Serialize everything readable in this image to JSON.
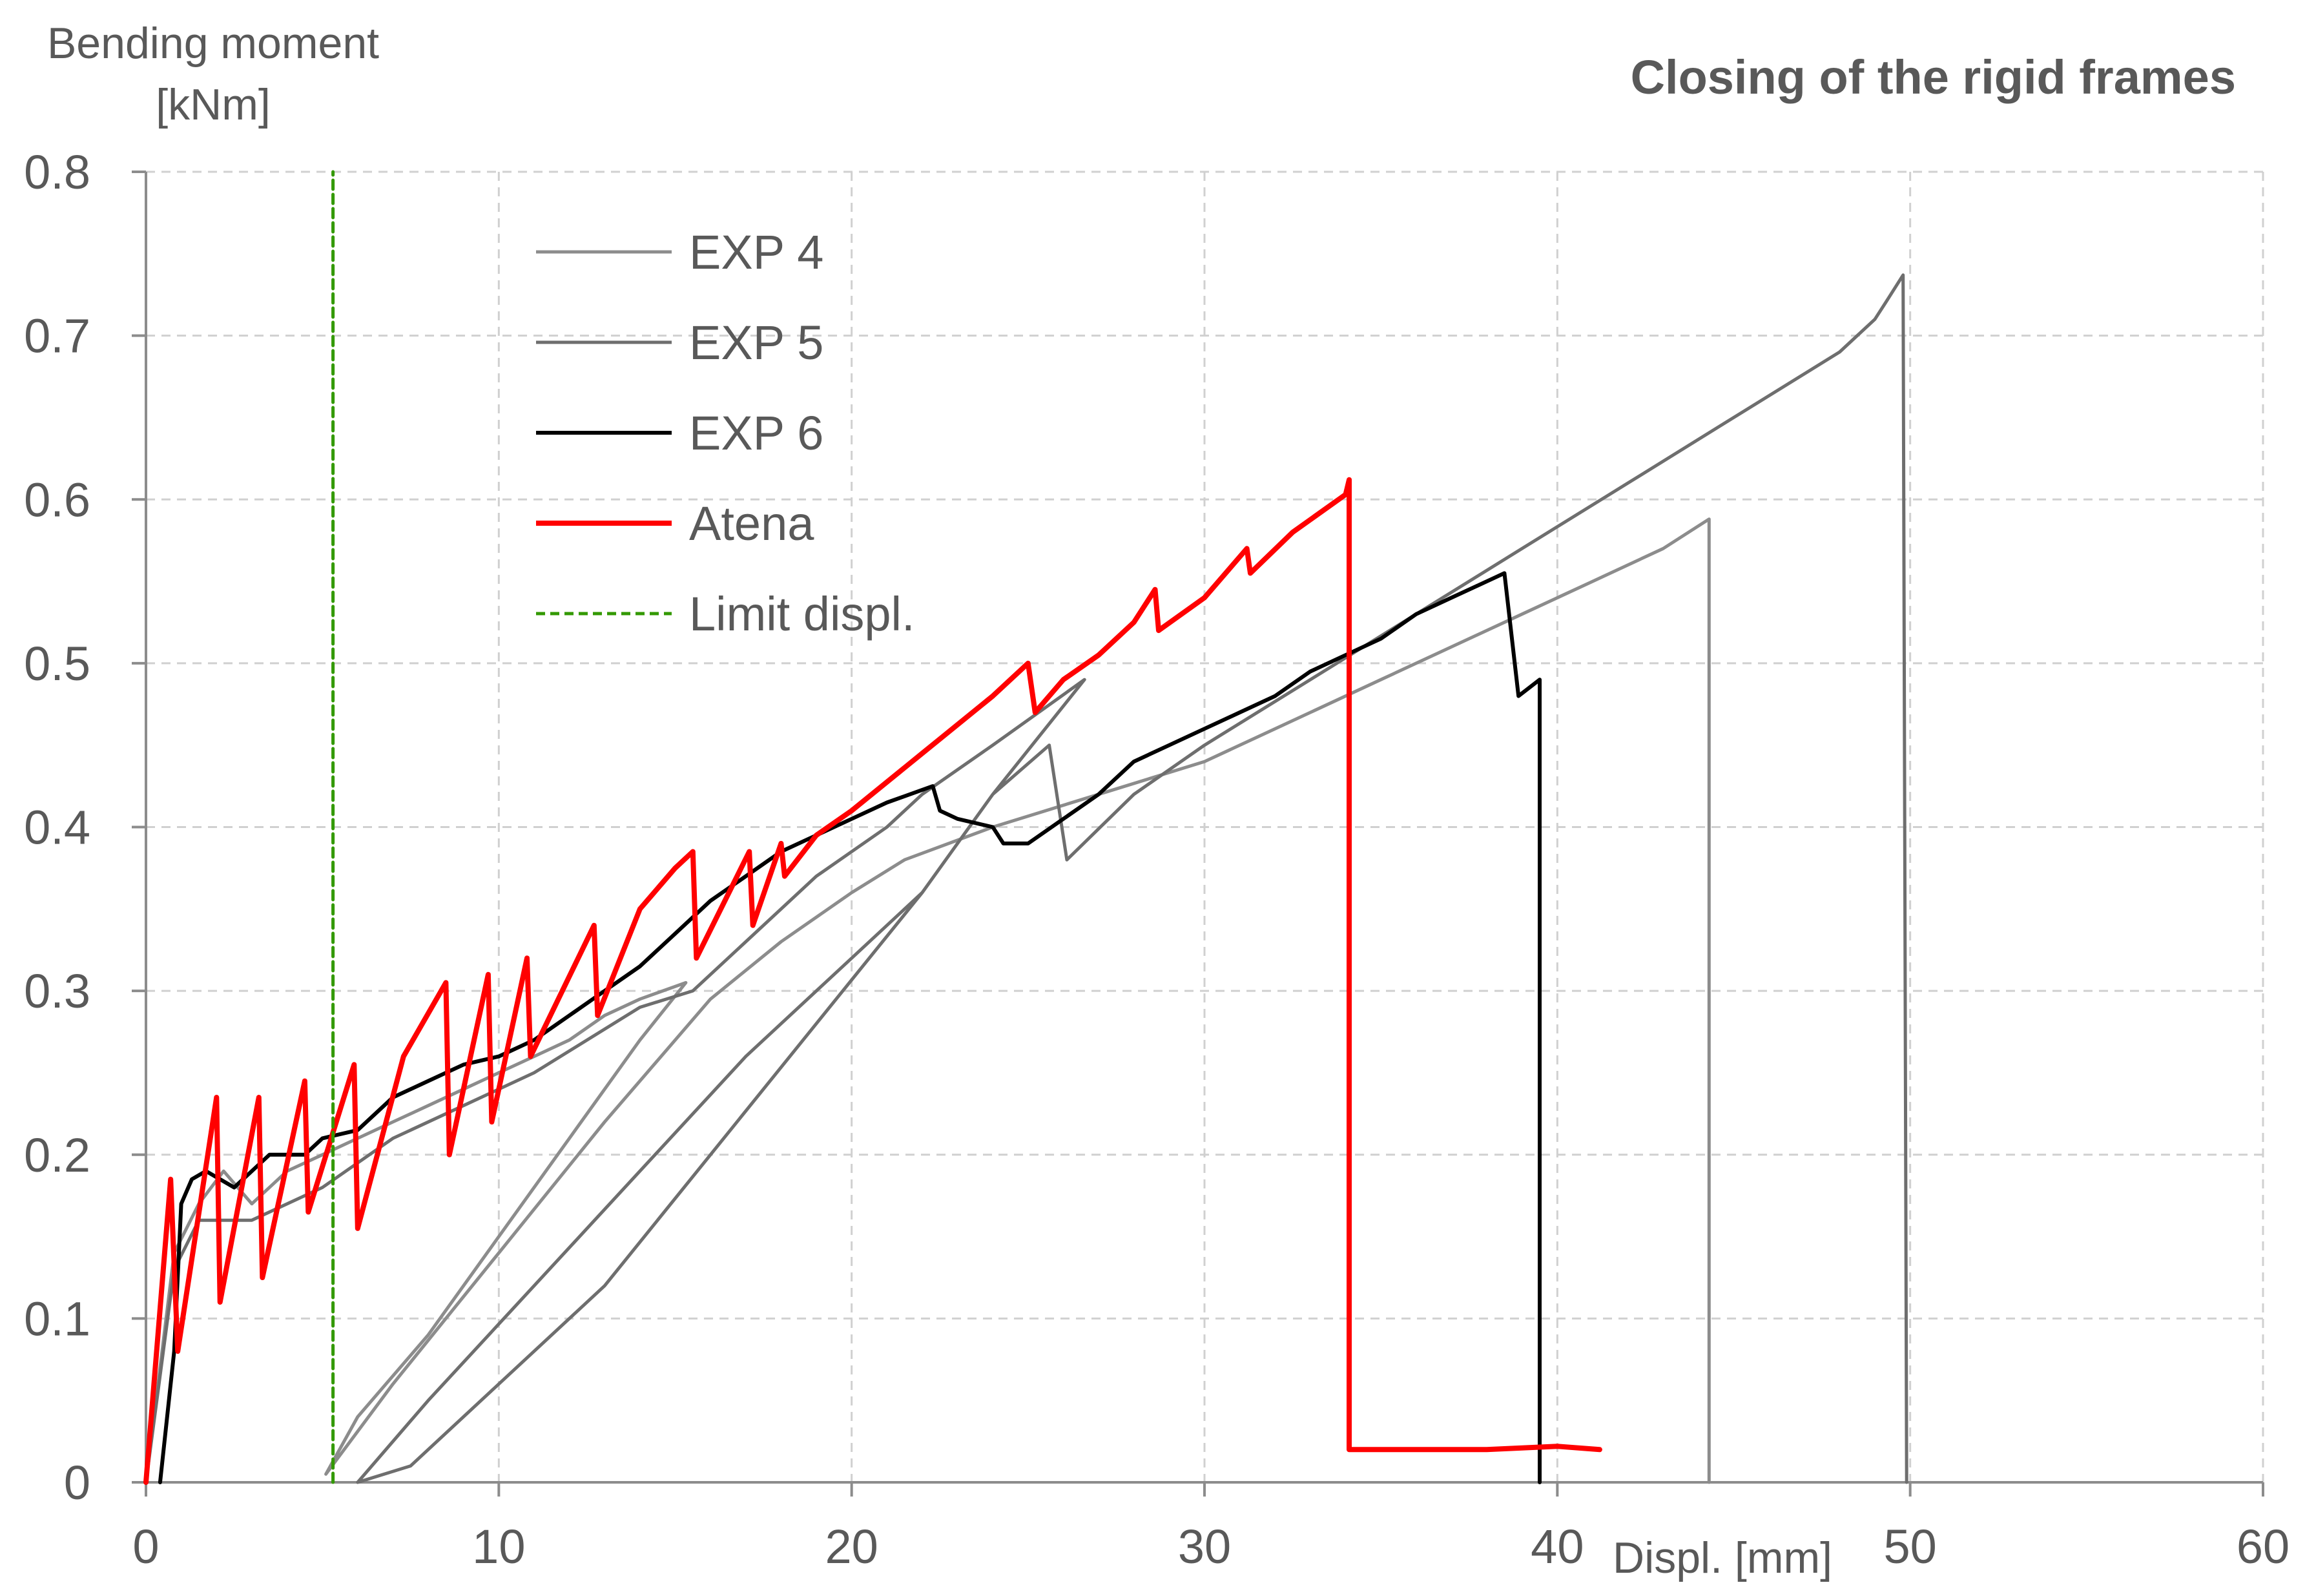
{
  "chart_data": {
    "type": "line",
    "title": "Closing of the rigid frames",
    "ylabel": "Bending moment [kNm]",
    "ylabel_lines": [
      "Bending moment",
      "[kNm]"
    ],
    "xlabel": "Displ. [mm]",
    "xlim": [
      0,
      60
    ],
    "ylim": [
      0,
      0.8
    ],
    "x_ticks": [
      "0",
      "10",
      "20",
      "30",
      "40",
      "50",
      "60"
    ],
    "y_ticks": [
      "0",
      "0.1",
      "0.2",
      "0.3",
      "0.4",
      "0.5",
      "0.6",
      "0.7",
      "0.8"
    ],
    "grid": true,
    "legend_position": "top-left",
    "series": [
      {
        "name": "EXP 4",
        "color": "#8c8c8c",
        "width": 5,
        "points": [
          [
            0,
            0
          ],
          [
            0.8,
            0.14
          ],
          [
            1.5,
            0.17
          ],
          [
            2.2,
            0.19
          ],
          [
            3,
            0.17
          ],
          [
            4,
            0.19
          ],
          [
            5,
            0.2
          ],
          [
            6,
            0.21
          ],
          [
            7,
            0.22
          ],
          [
            8,
            0.23
          ],
          [
            9,
            0.24
          ],
          [
            10,
            0.25
          ],
          [
            11,
            0.26
          ],
          [
            12,
            0.27
          ],
          [
            13,
            0.285
          ],
          [
            14,
            0.295
          ],
          [
            15.3,
            0.305
          ],
          [
            14,
            0.27
          ],
          [
            12,
            0.21
          ],
          [
            10,
            0.15
          ],
          [
            8,
            0.09
          ],
          [
            6,
            0.04
          ],
          [
            5.1,
            0.005
          ],
          [
            7,
            0.06
          ],
          [
            10,
            0.14
          ],
          [
            13,
            0.22
          ],
          [
            16,
            0.295
          ],
          [
            18,
            0.33
          ],
          [
            20,
            0.36
          ],
          [
            21.5,
            0.38
          ],
          [
            24,
            0.4
          ],
          [
            27,
            0.42
          ],
          [
            30,
            0.44
          ],
          [
            33,
            0.47
          ],
          [
            35,
            0.49
          ],
          [
            37,
            0.51
          ],
          [
            39,
            0.53
          ],
          [
            41,
            0.55
          ],
          [
            43,
            0.57
          ],
          [
            44.3,
            0.588
          ],
          [
            44.3,
            0
          ]
        ]
      },
      {
        "name": "EXP 5",
        "color": "#6e6e6e",
        "width": 5,
        "points": [
          [
            0,
            0
          ],
          [
            0.8,
            0.13
          ],
          [
            1.5,
            0.16
          ],
          [
            3,
            0.16
          ],
          [
            5,
            0.18
          ],
          [
            7,
            0.21
          ],
          [
            9,
            0.23
          ],
          [
            11,
            0.25
          ],
          [
            12.5,
            0.27
          ],
          [
            14,
            0.29
          ],
          [
            15.5,
            0.3
          ],
          [
            17,
            0.33
          ],
          [
            19,
            0.37
          ],
          [
            21,
            0.4
          ],
          [
            22,
            0.42
          ],
          [
            24,
            0.45
          ],
          [
            26.6,
            0.49
          ],
          [
            24,
            0.42
          ],
          [
            22,
            0.36
          ],
          [
            19,
            0.28
          ],
          [
            16,
            0.2
          ],
          [
            13,
            0.12
          ],
          [
            10,
            0.06
          ],
          [
            7.5,
            0.01
          ],
          [
            6,
            0
          ],
          [
            8,
            0.05
          ],
          [
            11,
            0.12
          ],
          [
            14,
            0.19
          ],
          [
            17,
            0.26
          ],
          [
            20,
            0.32
          ],
          [
            22,
            0.36
          ],
          [
            24,
            0.42
          ],
          [
            25.6,
            0.45
          ],
          [
            26.1,
            0.38
          ],
          [
            28,
            0.42
          ],
          [
            30,
            0.45
          ],
          [
            33,
            0.49
          ],
          [
            36,
            0.53
          ],
          [
            39,
            0.57
          ],
          [
            42,
            0.61
          ],
          [
            45,
            0.65
          ],
          [
            48,
            0.69
          ],
          [
            49,
            0.71
          ],
          [
            49.3,
            0.72
          ],
          [
            49.8,
            0.737
          ],
          [
            49.9,
            0
          ]
        ]
      },
      {
        "name": "EXP 6",
        "color": "#000000",
        "width": 6,
        "points": [
          [
            0.4,
            0
          ],
          [
            0.8,
            0.08
          ],
          [
            1,
            0.17
          ],
          [
            1.3,
            0.185
          ],
          [
            1.7,
            0.19
          ],
          [
            2.5,
            0.18
          ],
          [
            3.5,
            0.2
          ],
          [
            4.5,
            0.2
          ],
          [
            5,
            0.21
          ],
          [
            6,
            0.215
          ],
          [
            7,
            0.235
          ],
          [
            8,
            0.245
          ],
          [
            9,
            0.255
          ],
          [
            10,
            0.26
          ],
          [
            11,
            0.27
          ],
          [
            12,
            0.285
          ],
          [
            13,
            0.3
          ],
          [
            14,
            0.315
          ],
          [
            15,
            0.335
          ],
          [
            16,
            0.355
          ],
          [
            17,
            0.37
          ],
          [
            18,
            0.385
          ],
          [
            19,
            0.395
          ],
          [
            20,
            0.405
          ],
          [
            21,
            0.415
          ],
          [
            22.3,
            0.425
          ],
          [
            22.5,
            0.41
          ],
          [
            23,
            0.405
          ],
          [
            24,
            0.4
          ],
          [
            24.3,
            0.39
          ],
          [
            25,
            0.39
          ],
          [
            26,
            0.405
          ],
          [
            27,
            0.42
          ],
          [
            28,
            0.44
          ],
          [
            29,
            0.45
          ],
          [
            30,
            0.46
          ],
          [
            31,
            0.47
          ],
          [
            32,
            0.48
          ],
          [
            33,
            0.495
          ],
          [
            34,
            0.505
          ],
          [
            35,
            0.515
          ],
          [
            36,
            0.53
          ],
          [
            37,
            0.54
          ],
          [
            38.5,
            0.555
          ],
          [
            38.9,
            0.48
          ],
          [
            39.5,
            0.49
          ],
          [
            39.5,
            0
          ]
        ]
      },
      {
        "name": "Atena",
        "color": "#ff0000",
        "width": 8,
        "points": [
          [
            0,
            0
          ],
          [
            0.7,
            0.185
          ],
          [
            0.9,
            0.08
          ],
          [
            2,
            0.235
          ],
          [
            2.1,
            0.11
          ],
          [
            3.2,
            0.235
          ],
          [
            3.3,
            0.125
          ],
          [
            4.5,
            0.245
          ],
          [
            4.6,
            0.165
          ],
          [
            5.9,
            0.255
          ],
          [
            6,
            0.155
          ],
          [
            7.3,
            0.26
          ],
          [
            8.5,
            0.305
          ],
          [
            8.6,
            0.2
          ],
          [
            9.7,
            0.31
          ],
          [
            9.8,
            0.22
          ],
          [
            10.8,
            0.32
          ],
          [
            10.9,
            0.26
          ],
          [
            12.7,
            0.34
          ],
          [
            12.8,
            0.285
          ],
          [
            14,
            0.35
          ],
          [
            15,
            0.375
          ],
          [
            15.5,
            0.385
          ],
          [
            15.6,
            0.32
          ],
          [
            17.1,
            0.385
          ],
          [
            17.2,
            0.34
          ],
          [
            18,
            0.39
          ],
          [
            18.1,
            0.37
          ],
          [
            19,
            0.395
          ],
          [
            20,
            0.41
          ],
          [
            22,
            0.445
          ],
          [
            24,
            0.48
          ],
          [
            25,
            0.5
          ],
          [
            25.2,
            0.47
          ],
          [
            26,
            0.49
          ],
          [
            27,
            0.505
          ],
          [
            28,
            0.525
          ],
          [
            28.6,
            0.545
          ],
          [
            28.7,
            0.52
          ],
          [
            30,
            0.54
          ],
          [
            31.2,
            0.57
          ],
          [
            31.3,
            0.555
          ],
          [
            32.5,
            0.58
          ],
          [
            34,
            0.603
          ],
          [
            34.1,
            0.612
          ],
          [
            34.1,
            0.02
          ],
          [
            36,
            0.02
          ],
          [
            38,
            0.02
          ],
          [
            40,
            0.022
          ],
          [
            41.2,
            0.02
          ]
        ]
      },
      {
        "name": "Limit displ.",
        "color": "#339900",
        "width": 5,
        "dashed": true,
        "points": [
          [
            5.3,
            0
          ],
          [
            5.3,
            0.8
          ]
        ]
      }
    ]
  }
}
